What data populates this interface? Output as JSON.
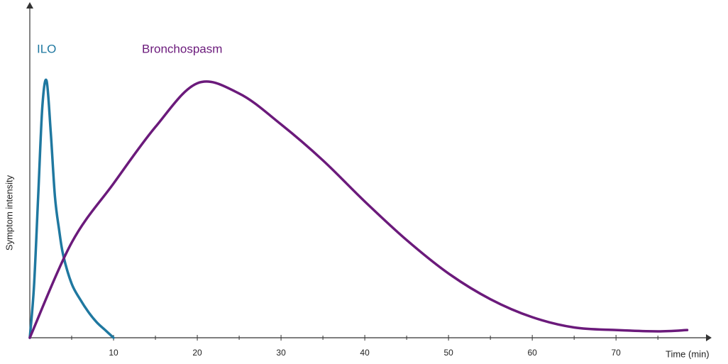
{
  "chart_data": {
    "type": "line",
    "x_label": "Time (min)",
    "y_label": "Symptom intensity",
    "xlim": [
      0,
      81
    ],
    "ylim": [
      0,
      130
    ],
    "xticks": [
      10,
      20,
      30,
      40,
      50,
      60,
      70
    ],
    "xminorticks": [
      5,
      15,
      25,
      35,
      45,
      55,
      65,
      75
    ],
    "series": [
      {
        "name": "ILO",
        "color": "#1f78a0",
        "x": [
          0,
          0.5,
          1,
          1.5,
          2,
          2.5,
          3,
          3.5,
          4,
          5,
          6,
          7,
          8,
          9,
          10
        ],
        "values": [
          0,
          20,
          55,
          90,
          100,
          80,
          55,
          42,
          32,
          21,
          15,
          10,
          6,
          3,
          0
        ]
      },
      {
        "name": "Bronchospasm",
        "color": "#6b1a7b",
        "x": [
          0,
          5,
          10,
          15,
          20,
          25,
          30,
          35,
          40,
          45,
          50,
          55,
          60,
          65,
          70,
          75,
          78.5
        ],
        "values": [
          0,
          37,
          60,
          82,
          99,
          95,
          83,
          69,
          53,
          38,
          25,
          15,
          8,
          4,
          3,
          2.5,
          3
        ]
      }
    ]
  }
}
